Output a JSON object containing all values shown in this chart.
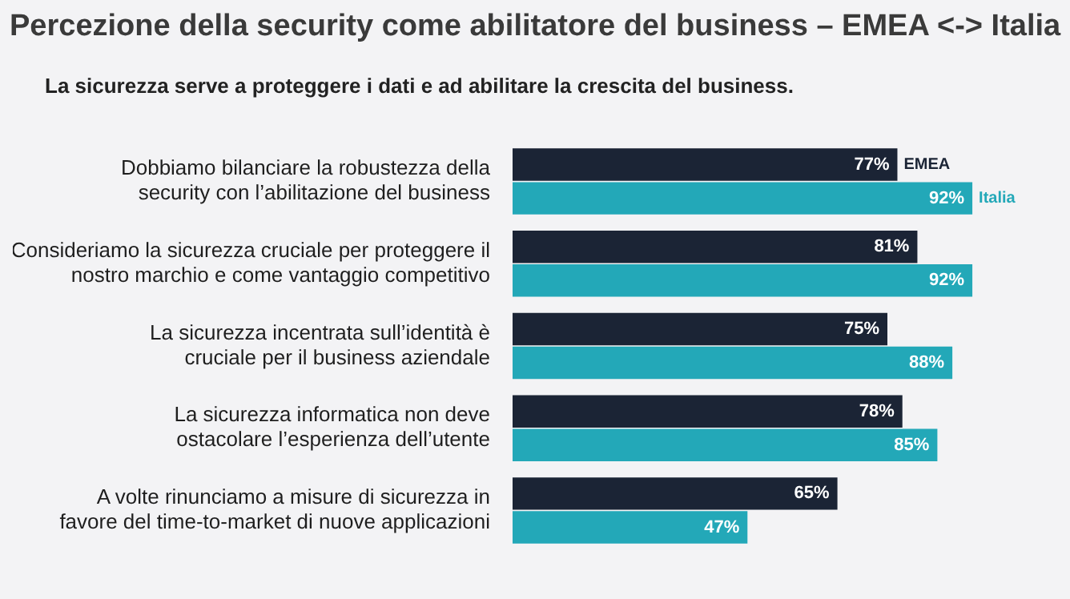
{
  "chart_data": {
    "type": "bar",
    "orientation": "horizontal",
    "title": "Percezione della security come abilitatore del business – EMEA <-> Italia",
    "subtitle": "La sicurezza serve a proteggere i dati e ad abilitare la crescita del business.",
    "categories": [
      "Dobbiamo bilanciare la robustezza della security con l’abilitazione del business",
      "Consideriamo la sicurezza cruciale per proteggere il nostro marchio e come vantaggio competitivo",
      "La sicurezza incentrata sull’identità è cruciale per il business aziendale",
      "La sicurezza informatica non deve ostacolare l’esperienza dell’utente",
      "A volte rinunciamo a misure di sicurezza in favore del time-to-market di nuove applicazioni"
    ],
    "series": [
      {
        "name": "EMEA",
        "color": "#1b2435",
        "values": [
          77,
          81,
          75,
          78,
          65
        ],
        "value_labels": [
          "77%",
          "81%",
          "75%",
          "78%",
          "65%"
        ]
      },
      {
        "name": "Italia",
        "color": "#23a8b8",
        "values": [
          92,
          92,
          88,
          85,
          47
        ],
        "value_labels": [
          "92%",
          "92%",
          "88%",
          "85%",
          "47%"
        ]
      }
    ]
  }
}
